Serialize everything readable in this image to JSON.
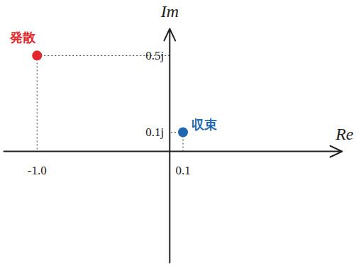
{
  "chart_data": {
    "type": "scatter",
    "xlabel": "Re",
    "ylabel": "Im",
    "xlim": [
      -1.25,
      1.3
    ],
    "ylim": [
      -0.58,
      0.64
    ],
    "xticks": [
      {
        "value": -1.0,
        "label": "-1.0"
      },
      0.1
    ],
    "yticks": [
      {
        "value": 0.5,
        "label": "0.5j"
      },
      {
        "value": 0.1,
        "label": "0.1j"
      }
    ],
    "marker": "circle",
    "series": [
      {
        "name": "発散",
        "color": "#e3262b",
        "x": [
          -1.0
        ],
        "values": [
          0.5
        ]
      },
      {
        "name": "収束",
        "color": "#1f67b1",
        "x": [
          0.1
        ],
        "values": [
          0.1
        ]
      }
    ]
  }
}
